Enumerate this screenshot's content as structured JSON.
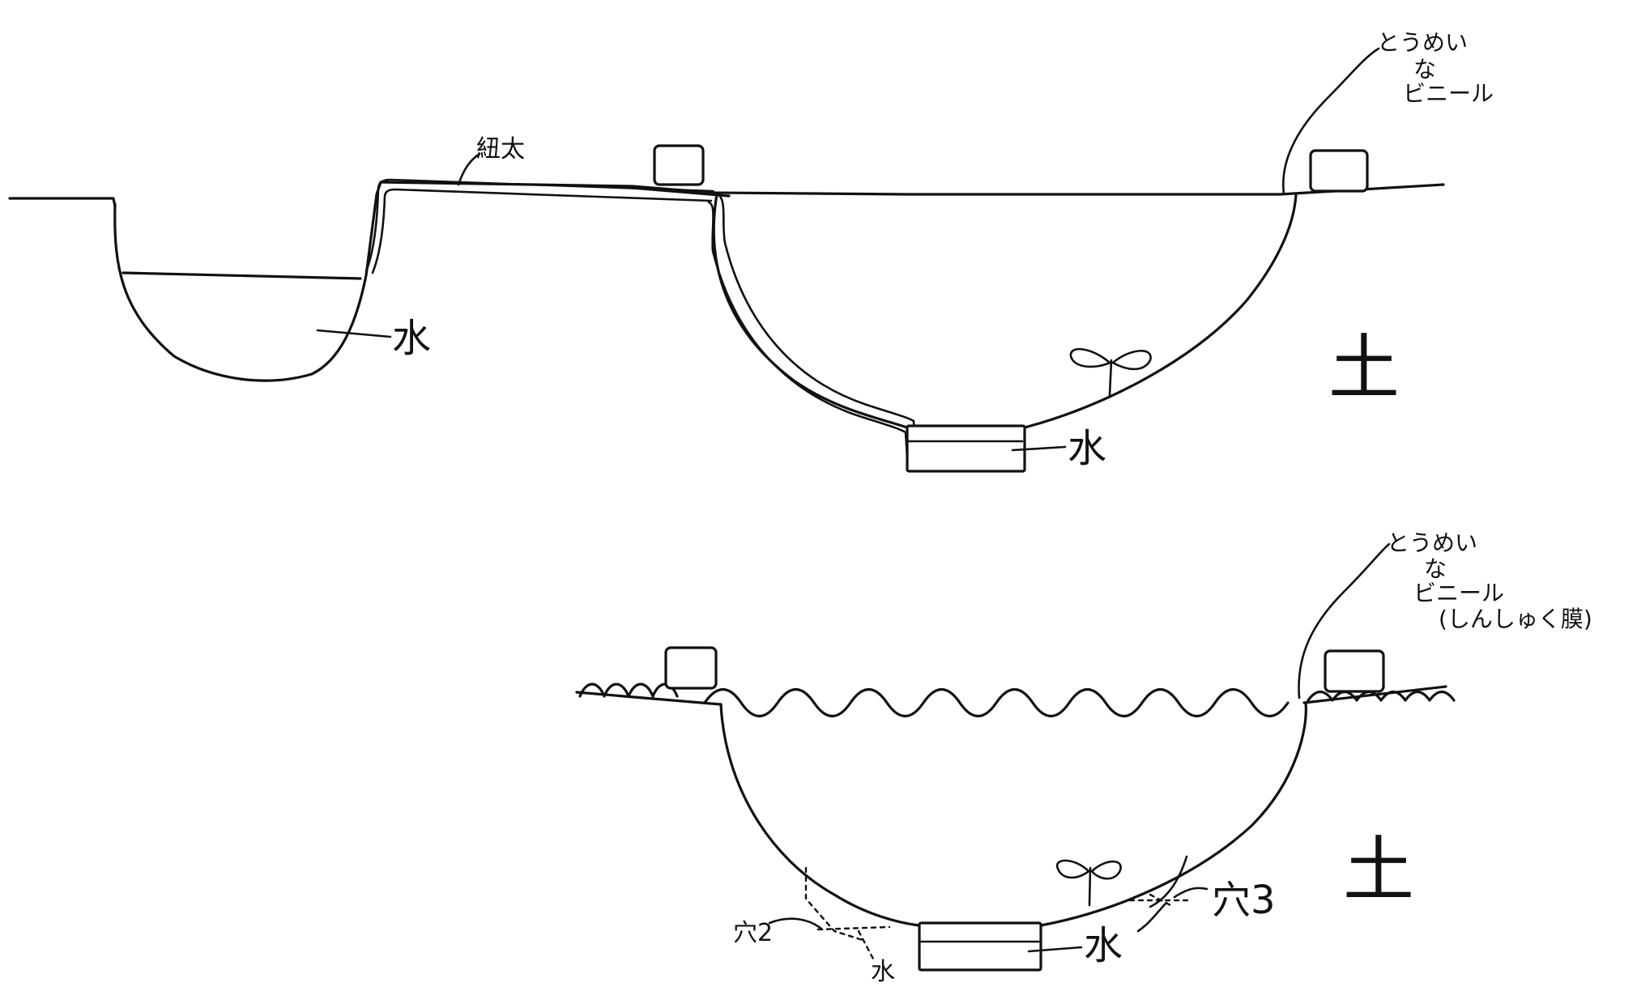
{
  "diagram": {
    "top": {
      "wick_label": "紐太",
      "pond_water_label": "水",
      "container_water_label": "水",
      "plastic_label_line1": "とうめい",
      "plastic_label_line2": "な",
      "plastic_label_line3": "ビニール",
      "soil_label": "土"
    },
    "bottom": {
      "plastic_label_line1": "とうめい",
      "plastic_label_line2": "な",
      "plastic_label_line3": "ビニール",
      "plastic_label_line4": "(しんしゅく膜)",
      "soil_label": "土",
      "hole2_label": "穴2",
      "hole3_label": "穴3",
      "water_label_left": "水",
      "water_label_center": "水"
    }
  }
}
